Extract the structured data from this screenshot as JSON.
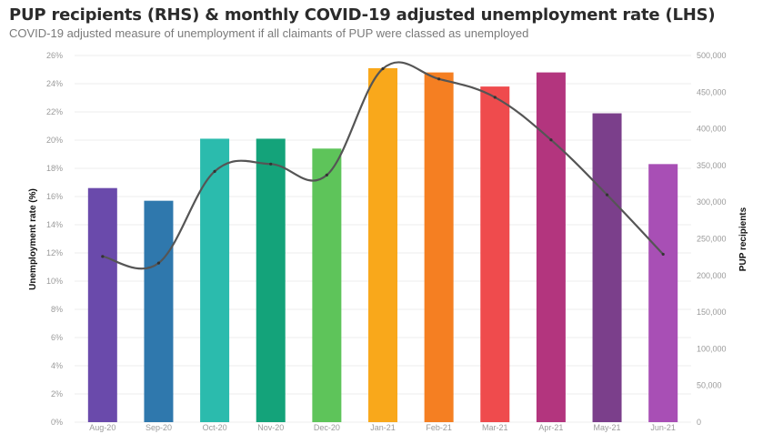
{
  "title": "PUP recipients (RHS) & monthly COVID-19 adjusted unemployment rate (LHS)",
  "subtitle": "COVID-19 adjusted measure of unemployment if all claimants of PUP were classed as unemployed",
  "chart_data": {
    "type": "bar",
    "categories": [
      "Aug-20",
      "Sep-20",
      "Oct-20",
      "Nov-20",
      "Dec-20",
      "Jan-21",
      "Feb-21",
      "Mar-21",
      "Apr-21",
      "May-21",
      "Jun-21"
    ],
    "series": [
      {
        "chart_type": "bar",
        "axis": "left",
        "values": [
          16.6,
          15.7,
          20.1,
          20.1,
          19.4,
          25.1,
          24.8,
          23.8,
          24.8,
          21.9,
          18.3
        ],
        "colors": [
          "#6a4aab",
          "#2f78ad",
          "#2bbbad",
          "#14a37a",
          "#5ec45a",
          "#f9a81b",
          "#f57f22",
          "#ef4b4d",
          "#b3357e",
          "#7b3f8b",
          "#a84fb5"
        ]
      },
      {
        "chart_type": "line",
        "axis": "right",
        "values": [
          226000,
          217000,
          342000,
          352000,
          337000,
          482000,
          468000,
          443000,
          385000,
          310000,
          229000
        ],
        "color": "#555555"
      }
    ],
    "xlabel": "",
    "ylabel": "Unemployment rate (%)",
    "y2label": "PUP recipients",
    "ylim": [
      0,
      26
    ],
    "y2lim": [
      0,
      500000
    ],
    "yticks": [
      "0%",
      "2%",
      "4%",
      "6%",
      "8%",
      "10%",
      "12%",
      "14%",
      "16%",
      "18%",
      "20%",
      "22%",
      "24%",
      "26%"
    ],
    "y2ticks": [
      "0",
      "50,000",
      "100,000",
      "150,000",
      "200,000",
      "250,000",
      "300,000",
      "350,000",
      "400,000",
      "450,000",
      "500,000"
    ],
    "grid": true,
    "legend": "none"
  }
}
